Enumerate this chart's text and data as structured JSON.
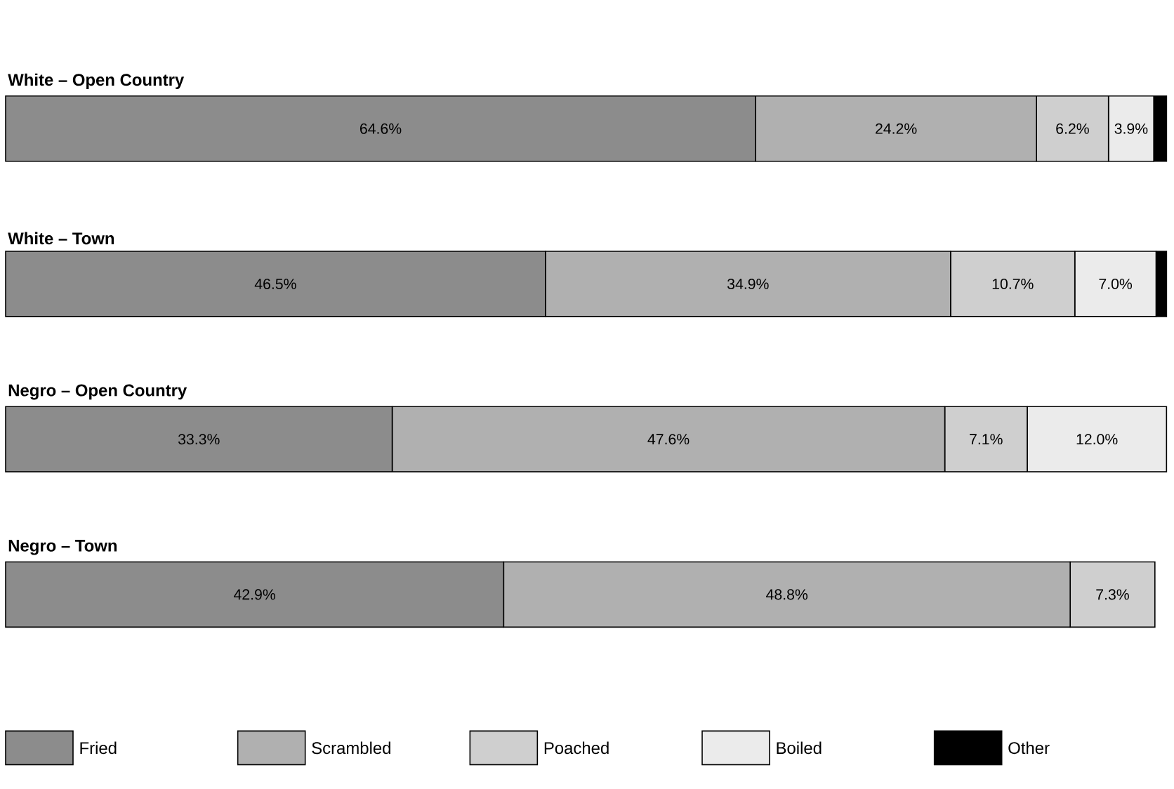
{
  "chart_data": {
    "type": "bar",
    "orientation": "horizontal",
    "stacked": true,
    "categories": [
      "White – Open Country",
      "White – Town",
      "Negro – Open Country",
      "Negro – Town"
    ],
    "series": [
      {
        "name": "Fried",
        "color": "#8c8c8c",
        "values": [
          64.6,
          46.5,
          33.3,
          42.9
        ],
        "value_labels": [
          "64.6%",
          "46.5%",
          "33.3%",
          "42.9%"
        ]
      },
      {
        "name": "Scrambled",
        "color": "#b0b0b0",
        "values": [
          24.2,
          34.9,
          47.6,
          48.8
        ],
        "value_labels": [
          "24.2%",
          "34.9%",
          "47.6%",
          "48.8%"
        ]
      },
      {
        "name": "Poached",
        "color": "#cfcfcf",
        "values": [
          6.2,
          10.7,
          7.1,
          7.3
        ],
        "value_labels": [
          "6.2%",
          "10.7%",
          "7.1%",
          "7.3%"
        ]
      },
      {
        "name": "Boiled",
        "color": "#ebebeb",
        "values": [
          3.9,
          7.0,
          12.0,
          null
        ],
        "value_labels": [
          "3.9%",
          "7.0%",
          "12.0%",
          null
        ]
      },
      {
        "name": "Other",
        "color": "#000000",
        "values": [
          1.1,
          0.9,
          null,
          null
        ],
        "value_labels": [
          null,
          null,
          null,
          null
        ]
      }
    ],
    "xlim": [
      0,
      100
    ],
    "tick_labels": false,
    "legend": "bottom"
  }
}
